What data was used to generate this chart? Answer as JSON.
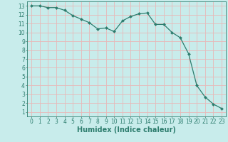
{
  "x": [
    0,
    1,
    2,
    3,
    4,
    5,
    6,
    7,
    8,
    9,
    10,
    11,
    12,
    13,
    14,
    15,
    16,
    17,
    18,
    19,
    20,
    21,
    22,
    23
  ],
  "y": [
    13.0,
    13.0,
    12.8,
    12.8,
    12.5,
    11.9,
    11.5,
    11.1,
    10.4,
    10.5,
    10.1,
    11.3,
    11.8,
    12.1,
    12.2,
    10.9,
    10.9,
    10.0,
    9.4,
    7.6,
    4.0,
    2.7,
    1.9,
    1.4
  ],
  "xlabel": "Humidex (Indice chaleur)",
  "line_color": "#2d7d6e",
  "marker": "D",
  "marker_size": 2.0,
  "bg_color": "#c8eceb",
  "grid_color": "#e8b8b8",
  "xlim": [
    -0.5,
    23.5
  ],
  "ylim": [
    0.5,
    13.5
  ],
  "xticks": [
    0,
    1,
    2,
    3,
    4,
    5,
    6,
    7,
    8,
    9,
    10,
    11,
    12,
    13,
    14,
    15,
    16,
    17,
    18,
    19,
    20,
    21,
    22,
    23
  ],
  "yticks": [
    1,
    2,
    3,
    4,
    5,
    6,
    7,
    8,
    9,
    10,
    11,
    12,
    13
  ],
  "tick_fontsize": 5.5,
  "xlabel_fontsize": 7.0,
  "label_color": "#2d7d6e",
  "axis_color": "#2d7d6e"
}
